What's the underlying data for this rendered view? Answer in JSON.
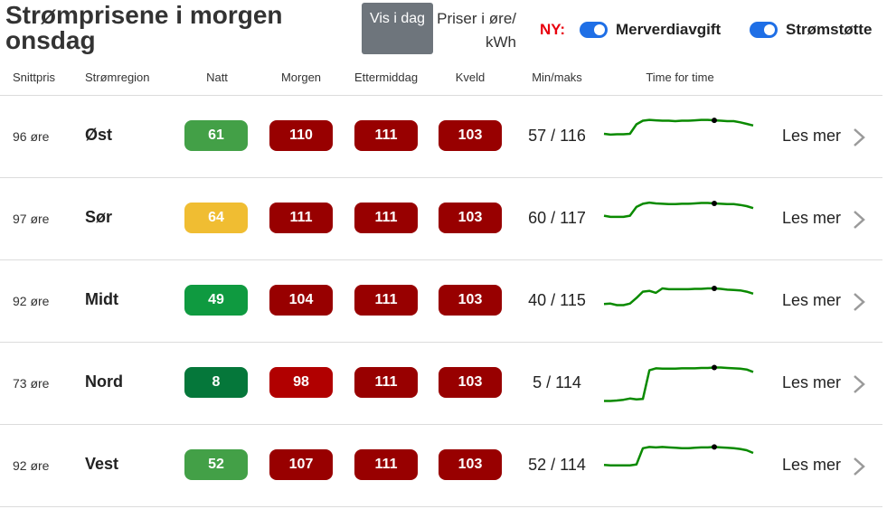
{
  "header": {
    "title": "Strømprisene i morgen onsdag",
    "show_today_button": "Vis i dag",
    "units": "Priser i øre/ kWh",
    "new_label": "NY:",
    "toggles": [
      {
        "label": "Merverdiavgift",
        "on": true
      },
      {
        "label": "Strømstøtte",
        "on": true
      }
    ]
  },
  "columns": [
    "Snittpris",
    "Strømregion",
    "Natt",
    "Morgen",
    "Ettermiddag",
    "Kveld",
    "Min/maks",
    "Time for time"
  ],
  "colors": {
    "dark_red": "#980000",
    "red": "#b10000",
    "light_green": "#43a047",
    "green": "#0f9a40",
    "dark_green": "#05773a",
    "yellow": "#f0bd32",
    "sparkline": "#0a8a00"
  },
  "rows": [
    {
      "avg": "96 øre",
      "region": "Øst",
      "prices": [
        {
          "value": "61",
          "color": "#43a047"
        },
        {
          "value": "110",
          "color": "#980000"
        },
        {
          "value": "111",
          "color": "#980000"
        },
        {
          "value": "103",
          "color": "#980000"
        }
      ],
      "minmax": "57 / 116",
      "more": "Les mer",
      "hourly": [
        59,
        57,
        58,
        58,
        59,
        83,
        92,
        94,
        93,
        92,
        92,
        91,
        92,
        92,
        93,
        94,
        94,
        93,
        92,
        91,
        91,
        88,
        84,
        80
      ],
      "marker_hour": 17
    },
    {
      "avg": "97 øre",
      "region": "Sør",
      "prices": [
        {
          "value": "64",
          "color": "#f0bd32"
        },
        {
          "value": "111",
          "color": "#980000"
        },
        {
          "value": "111",
          "color": "#980000"
        },
        {
          "value": "103",
          "color": "#980000"
        }
      ],
      "minmax": "60 / 117",
      "more": "Les mer",
      "hourly": [
        60,
        57,
        57,
        57,
        60,
        82,
        90,
        93,
        91,
        90,
        89,
        89,
        90,
        90,
        91,
        92,
        92,
        91,
        90,
        89,
        89,
        87,
        84,
        79
      ],
      "marker_hour": 17
    },
    {
      "avg": "92 øre",
      "region": "Midt",
      "prices": [
        {
          "value": "49",
          "color": "#0f9a40"
        },
        {
          "value": "104",
          "color": "#980000"
        },
        {
          "value": "111",
          "color": "#980000"
        },
        {
          "value": "103",
          "color": "#980000"
        }
      ],
      "minmax": "40 / 115",
      "more": "Les mer",
      "hourly": [
        45,
        46,
        42,
        42,
        46,
        60,
        76,
        78,
        73,
        84,
        82,
        82,
        82,
        82,
        83,
        83,
        84,
        84,
        83,
        81,
        80,
        79,
        76,
        71
      ],
      "marker_hour": 17
    },
    {
      "avg": "73 øre",
      "region": "Nord",
      "prices": [
        {
          "value": "8",
          "color": "#05773a"
        },
        {
          "value": "98",
          "color": "#b10000"
        },
        {
          "value": "111",
          "color": "#980000"
        },
        {
          "value": "103",
          "color": "#980000"
        }
      ],
      "minmax": "5 / 114",
      "more": "Les mer",
      "hourly": [
        8,
        8,
        9,
        11,
        14,
        12,
        13,
        85,
        90,
        89,
        89,
        89,
        90,
        90,
        90,
        91,
        91,
        92,
        92,
        91,
        90,
        89,
        87,
        81
      ],
      "marker_hour": 17
    },
    {
      "avg": "92 øre",
      "region": "Vest",
      "prices": [
        {
          "value": "52",
          "color": "#43a047"
        },
        {
          "value": "107",
          "color": "#980000"
        },
        {
          "value": "111",
          "color": "#980000"
        },
        {
          "value": "103",
          "color": "#980000"
        }
      ],
      "minmax": "52 / 114",
      "more": "Les mer",
      "hourly": [
        54,
        53,
        53,
        53,
        53,
        55,
        96,
        99,
        98,
        99,
        98,
        97,
        96,
        96,
        97,
        98,
        98,
        99,
        98,
        97,
        96,
        94,
        91,
        84
      ],
      "marker_hour": 17
    }
  ]
}
